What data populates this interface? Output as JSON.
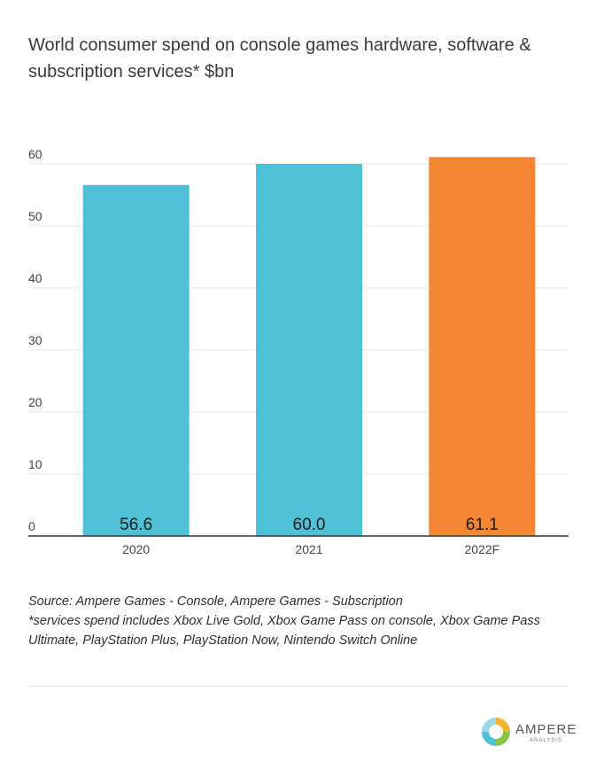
{
  "chart_data": {
    "type": "bar",
    "title": "World consumer spend on console games hardware, software & subscription services* $bn",
    "categories": [
      "2020",
      "2021",
      "2022F"
    ],
    "values": [
      56.6,
      60.0,
      61.1
    ],
    "value_labels": [
      "56.6",
      "60.0",
      "61.1"
    ],
    "bar_colors": [
      "#4fc0d6",
      "#4fc0d6",
      "#f58634"
    ],
    "ylim": [
      0,
      60
    ],
    "yticks": [
      0,
      10,
      20,
      30,
      40,
      50,
      60
    ],
    "grid": true,
    "xlabel": "",
    "ylabel": ""
  },
  "footer": {
    "source": "Source: Ampere Games - Console, Ampere Games - Subscription",
    "footnote": "*services spend includes Xbox Live Gold, Xbox Game Pass on console, Xbox Game Pass Ultimate, PlayStation Plus, PlayStation Now, Nintendo Switch Online"
  },
  "logo": {
    "name": "AMPERE",
    "sub": "ANALYSIS"
  }
}
